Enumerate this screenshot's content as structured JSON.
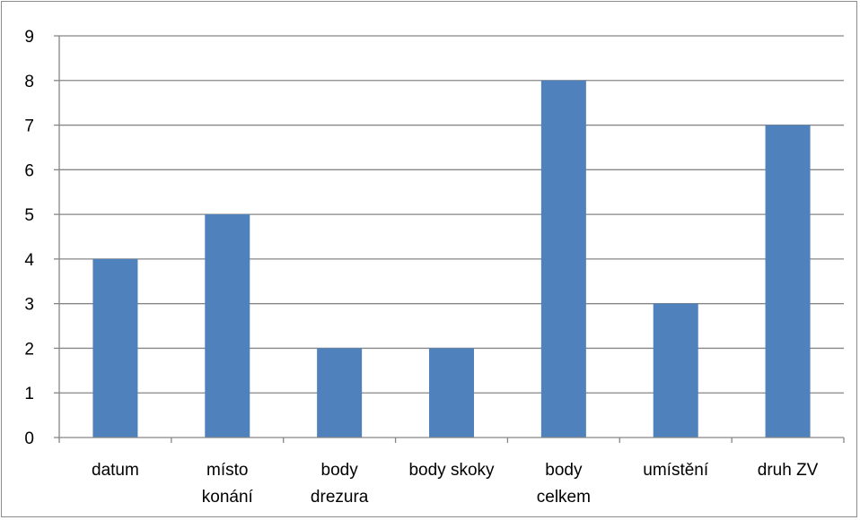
{
  "chart_data": {
    "type": "bar",
    "categories": [
      [
        "datum"
      ],
      [
        "místo",
        "konání"
      ],
      [
        "body",
        "drezura"
      ],
      [
        "body skoky"
      ],
      [
        "body",
        "celkem"
      ],
      [
        "umístění"
      ],
      [
        "druh ZV"
      ]
    ],
    "values": [
      4,
      5,
      2,
      2,
      8,
      3,
      7
    ],
    "title": "",
    "xlabel": "",
    "ylabel": "",
    "ylim": [
      0,
      9
    ],
    "yticks": [
      0,
      1,
      2,
      3,
      4,
      5,
      6,
      7,
      8,
      9
    ],
    "grid": true,
    "legend": "none",
    "colors": {
      "bar": "#4f81bd",
      "grid": "#868686",
      "axis": "#868686",
      "frame": "#8c8c8c"
    }
  }
}
